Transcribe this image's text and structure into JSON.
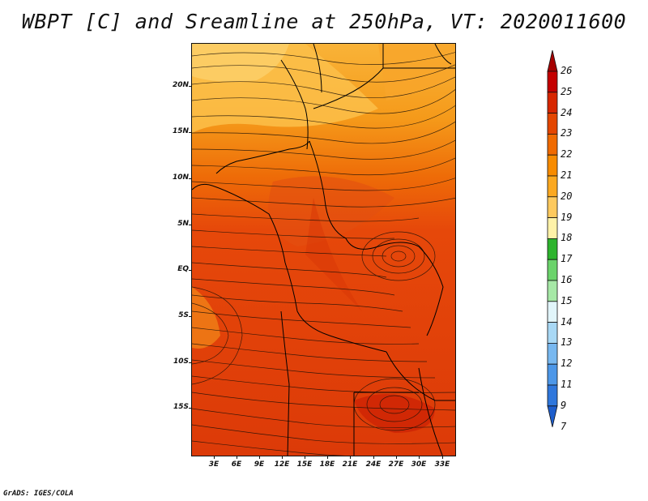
{
  "title": "WBPT [C] and Sreamline at 250hPa, VT: 2020011600",
  "footer": "GrADS: IGES/COLA",
  "lat_labels": [
    "20N",
    "15N",
    "10N",
    "5N",
    "EQ",
    "5S",
    "10S",
    "15S"
  ],
  "lon_labels": [
    "3E",
    "6E",
    "9E",
    "12E",
    "15E",
    "18E",
    "21E",
    "24E",
    "27E",
    "30E",
    "33E"
  ],
  "colorbar": {
    "labels": [
      "26",
      "25",
      "24",
      "23",
      "22",
      "21",
      "20",
      "19",
      "18",
      "17",
      "16",
      "15",
      "14",
      "13",
      "12",
      "11",
      "9",
      "7"
    ],
    "colors": [
      "#a50000",
      "#c40000",
      "#d72600",
      "#e44600",
      "#f06a00",
      "#f78b00",
      "#fba820",
      "#fdc95e",
      "#fff2a8",
      "#2db42d",
      "#6bd36b",
      "#a6e8a6",
      "#e1f5fa",
      "#a8d8f5",
      "#78b8f0",
      "#4d97e8",
      "#2f77dc",
      "#1e5ecc"
    ]
  },
  "chart_data": {
    "type": "heatmap",
    "title": "WBPT [C] and Sreamline at 250hPa, VT: 2020011600",
    "variable": "Wet-bulb potential temperature",
    "units": "C",
    "level": "250hPa",
    "valid_time": "2020011600",
    "x_ticks": [
      "3E",
      "6E",
      "9E",
      "12E",
      "15E",
      "18E",
      "21E",
      "24E",
      "27E",
      "30E",
      "33E"
    ],
    "y_ticks": [
      "20N",
      "15N",
      "10N",
      "5N",
      "EQ",
      "5S",
      "10S",
      "15S"
    ],
    "xlim": [
      0,
      35
    ],
    "ylim": [
      -20,
      25
    ],
    "colorbar_levels": [
      7,
      9,
      11,
      12,
      13,
      14,
      15,
      16,
      17,
      18,
      19,
      20,
      21,
      22,
      23,
      24,
      25,
      26
    ],
    "overlay": "streamlines"
  }
}
